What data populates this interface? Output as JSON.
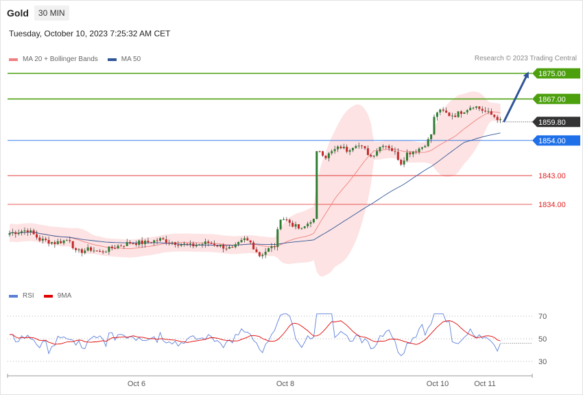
{
  "header": {
    "title": "Gold",
    "timeframe": "30 MIN",
    "datetime": "Tuesday, October 10, 2023 7:25:32 AM CET"
  },
  "copyright": "Research © 2023 Trading Central",
  "legend_price": [
    {
      "label": "MA 20 + Bollinger Bands",
      "color": "#f08080"
    },
    {
      "label": "MA 50",
      "color": "#2f5597"
    }
  ],
  "legend_rsi": [
    {
      "label": "RSI",
      "color": "#5b7fd9"
    },
    {
      "label": "9MA",
      "color": "#e00000"
    }
  ],
  "chart_data": [
    {
      "type": "candlestick",
      "title": "Gold",
      "timeframe": "30 MIN",
      "ylim": [
        1810,
        1878
      ],
      "x_tick_labels": [
        "Oct 6",
        "Oct 8",
        "Oct 10",
        "Oct 11"
      ],
      "current_price": "1859.80",
      "levels": [
        {
          "value": 1875.0,
          "label": "1875.00",
          "kind": "resistance",
          "color": "#4ca00e"
        },
        {
          "value": 1867.0,
          "label": "1867.00",
          "kind": "resistance",
          "color": "#4ca00e"
        },
        {
          "value": 1859.8,
          "label": "1859.80",
          "kind": "current",
          "color": "#333333"
        },
        {
          "value": 1854.0,
          "label": "1854.00",
          "kind": "pivot",
          "color": "#1e6fe8"
        },
        {
          "value": 1843.0,
          "label": "1843.00",
          "kind": "support",
          "color": "#e02020"
        },
        {
          "value": 1834.0,
          "label": "1834.00",
          "kind": "support",
          "color": "#e02020"
        }
      ],
      "forecast_arrow": {
        "from": 1859.8,
        "to": 1875.0,
        "color": "#2f5597"
      },
      "series": [
        {
          "name": "MA 20 + Bollinger Bands",
          "color": "#f08080"
        },
        {
          "name": "MA 50",
          "color": "#2f5597"
        }
      ]
    },
    {
      "type": "line",
      "title": "",
      "ylim": [
        20,
        80
      ],
      "y_ticks": [
        30,
        50,
        70
      ],
      "series": [
        {
          "name": "RSI",
          "color": "#5b7fd9"
        },
        {
          "name": "9MA",
          "color": "#e00000"
        }
      ]
    }
  ]
}
